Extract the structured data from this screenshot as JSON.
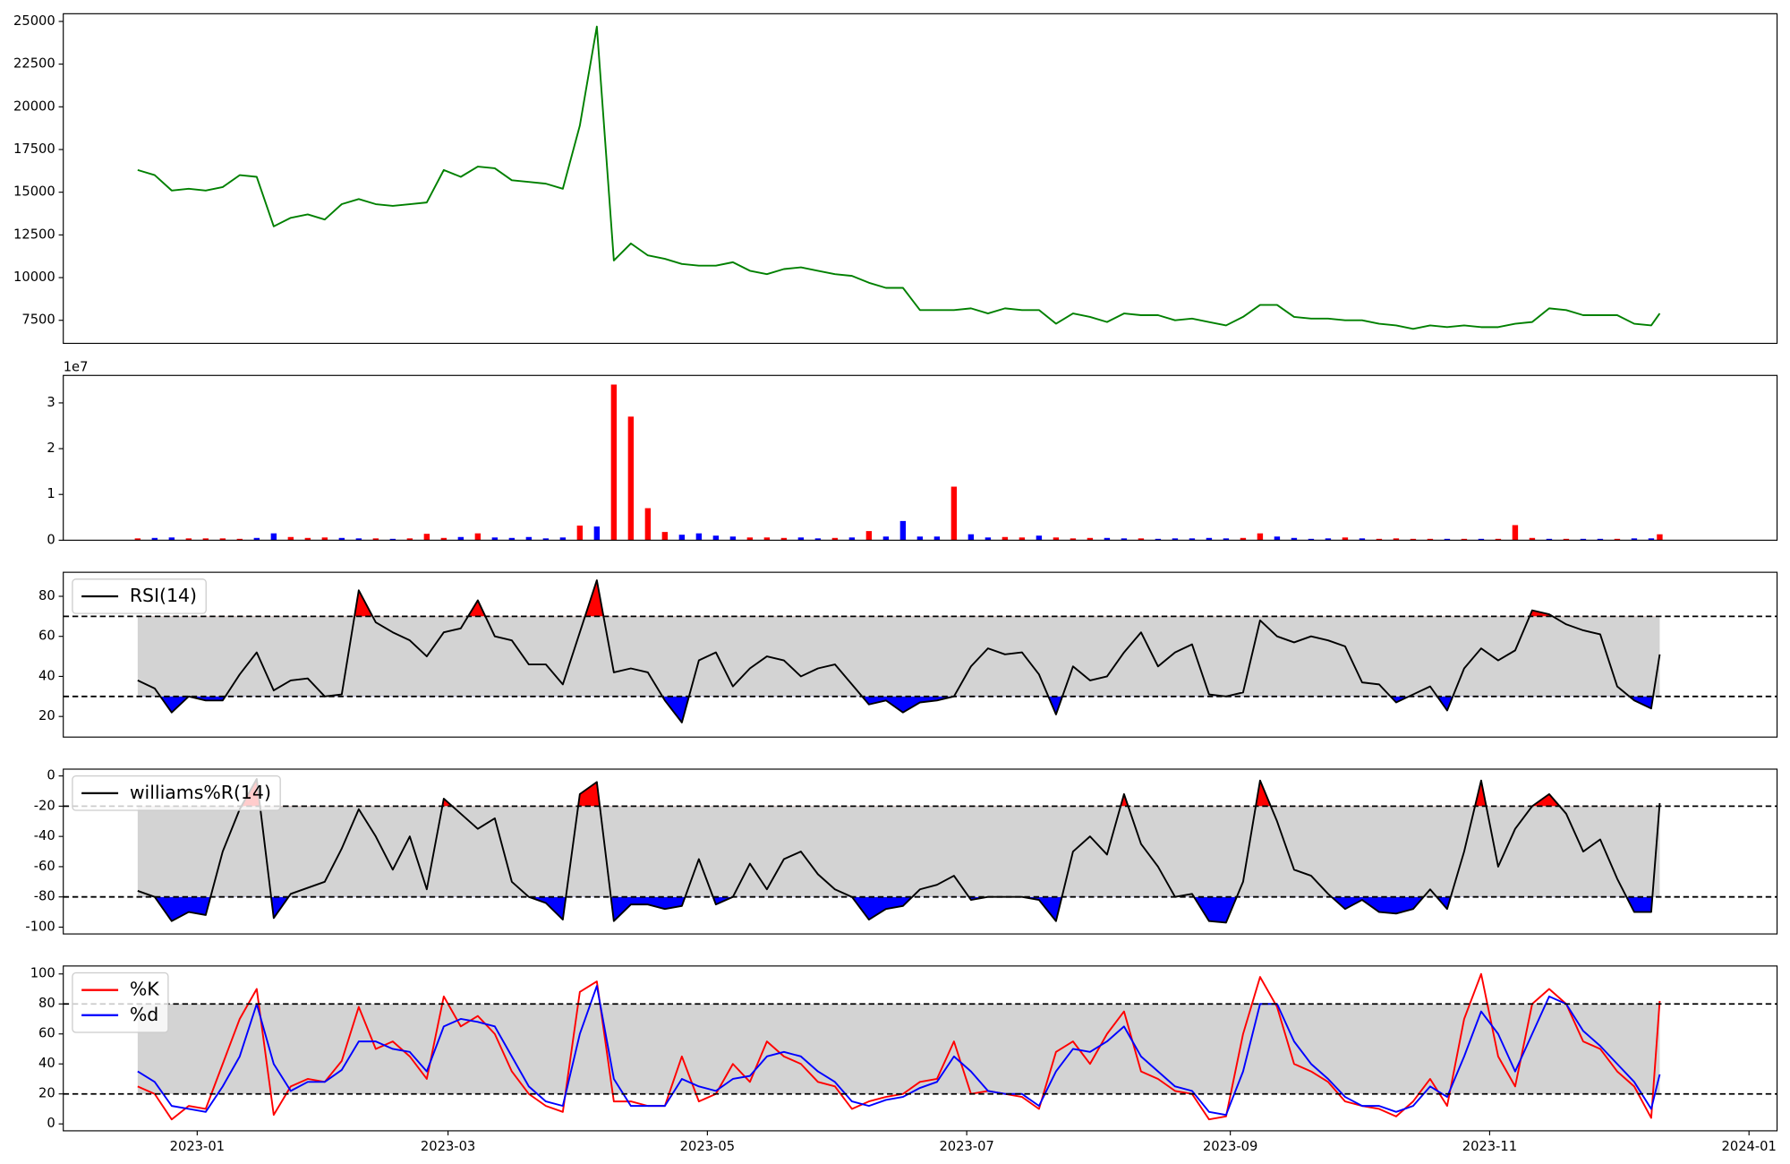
{
  "chart_data": [
    {
      "type": "line",
      "color": "green",
      "x": [
        -14,
        -10,
        -6,
        -2,
        2,
        6,
        10,
        14,
        18,
        22,
        26,
        30,
        34,
        38,
        42,
        46,
        50,
        54,
        58,
        62,
        66,
        70,
        74,
        78,
        82,
        86,
        90,
        94,
        98,
        102,
        106,
        110,
        114,
        118,
        122,
        126,
        130,
        134,
        138,
        142,
        146,
        150,
        154,
        158,
        162,
        166,
        170,
        174,
        178,
        182,
        186,
        190,
        194,
        198,
        202,
        206,
        210,
        214,
        218,
        222,
        226,
        230,
        234,
        238,
        242,
        246,
        250,
        254,
        258,
        262,
        266,
        270,
        274,
        278,
        282,
        286,
        290,
        294,
        298,
        302,
        306,
        310,
        314,
        318,
        322,
        326,
        330,
        334,
        338,
        342,
        344
      ],
      "xlim": [
        -31.5,
        371.6
      ],
      "values": [
        16300,
        16000,
        15100,
        15200,
        15100,
        15300,
        16000,
        15900,
        13000,
        13500,
        13700,
        13400,
        14300,
        14600,
        14300,
        14200,
        14300,
        14400,
        16300,
        15900,
        16500,
        16400,
        15700,
        15600,
        15500,
        15200,
        18900,
        24700,
        11000,
        12000,
        11300,
        11100,
        10800,
        10700,
        10700,
        10900,
        10400,
        10200,
        10500,
        10600,
        10400,
        10200,
        10100,
        9700,
        9400,
        9400,
        8100,
        8100,
        8100,
        8200,
        7900,
        8200,
        8100,
        8100,
        7300,
        7900,
        7700,
        7400,
        7900,
        7800,
        7800,
        7500,
        7600,
        7400,
        7200,
        7700,
        8400,
        8400,
        7700,
        7600,
        7600,
        7500,
        7500,
        7300,
        7200,
        7000,
        7200,
        7100,
        7200,
        7100,
        7100,
        7300,
        7400,
        8200,
        8100,
        7800,
        7800,
        7800,
        7300,
        7200,
        7900
      ],
      "ylim": [
        6150,
        25450
      ],
      "yticks": [
        7500,
        10000,
        12500,
        15000,
        17500,
        20000,
        22500,
        25000
      ]
    },
    {
      "type": "bar",
      "values": [
        400000,
        500000,
        600000,
        400000,
        400000,
        400000,
        300000,
        500000,
        1500000,
        700000,
        500000,
        600000,
        500000,
        400000,
        400000,
        300000,
        400000,
        1400000,
        500000,
        700000,
        1500000,
        600000,
        500000,
        700000,
        400000,
        600000,
        3200000,
        3000000,
        34000000,
        27000000,
        7000000,
        1800000,
        1200000,
        1500000,
        1000000,
        800000,
        600000,
        600000,
        500000,
        600000,
        400000,
        500000,
        600000,
        2000000,
        800000,
        4200000,
        800000,
        800000,
        11700000,
        1300000,
        600000,
        700000,
        600000,
        1000000,
        600000,
        400000,
        500000,
        500000,
        400000,
        400000,
        300000,
        400000,
        400000,
        500000,
        400000,
        500000,
        1500000,
        800000,
        500000,
        300000,
        400000,
        600000,
        400000,
        300000,
        400000,
        300000,
        300000,
        300000,
        300000,
        300000,
        300000,
        3300000,
        500000,
        300000,
        300000,
        300000,
        300000,
        300000,
        400000,
        400000,
        1300000
      ],
      "bar_colors": [
        "red",
        "blue",
        "blue",
        "red",
        "red",
        "red",
        "red",
        "blue",
        "blue",
        "red",
        "red",
        "red",
        "blue",
        "blue",
        "red",
        "blue",
        "red",
        "red",
        "red",
        "blue",
        "red",
        "blue",
        "blue",
        "blue",
        "blue",
        "blue",
        "red",
        "blue",
        "red",
        "red",
        "red",
        "red",
        "blue",
        "blue",
        "blue",
        "blue",
        "red",
        "red",
        "red",
        "blue",
        "blue",
        "red",
        "blue",
        "red",
        "blue",
        "blue",
        "blue",
        "blue",
        "red",
        "blue",
        "blue",
        "red",
        "red",
        "blue",
        "red",
        "red",
        "red",
        "blue",
        "blue",
        "red",
        "blue",
        "blue",
        "blue",
        "blue",
        "blue",
        "red",
        "red",
        "blue",
        "blue",
        "blue",
        "blue",
        "red",
        "blue",
        "red",
        "red",
        "red",
        "red",
        "blue",
        "red",
        "blue",
        "red",
        "red",
        "red",
        "blue",
        "red",
        "blue",
        "blue",
        "red",
        "blue",
        "blue",
        "red"
      ],
      "ylim": [
        0,
        36000000
      ],
      "yticks": [
        0,
        {
          "value": 10000000,
          "label": "1"
        },
        {
          "value": 20000000,
          "label": "2"
        },
        {
          "value": 30000000,
          "label": "3"
        }
      ],
      "offset_label": "1e7"
    },
    {
      "type": "line",
      "legend": "upper left",
      "series": [
        {
          "name": "RSI(14)",
          "color": "black",
          "values": [
            38,
            34,
            22,
            30,
            28,
            28,
            41,
            52,
            33,
            38,
            39,
            30,
            31,
            83,
            67,
            62,
            58,
            50,
            62,
            64,
            78,
            60,
            58,
            46,
            46,
            36,
            62,
            88,
            42,
            44,
            42,
            28,
            17,
            48,
            52,
            35,
            44,
            50,
            48,
            40,
            44,
            46,
            36,
            26,
            28,
            22,
            27,
            28,
            30,
            45,
            54,
            51,
            52,
            41,
            21,
            45,
            38,
            40,
            52,
            62,
            45,
            52,
            56,
            31,
            30,
            32,
            68,
            60,
            57,
            60,
            58,
            55,
            37,
            36,
            27,
            31,
            35,
            23,
            44,
            54,
            48,
            53,
            73,
            71,
            66,
            63,
            61,
            35,
            28,
            24,
            51
          ]
        }
      ],
      "ylim": [
        9.7,
        92
      ],
      "yticks": [
        20,
        40,
        60,
        80
      ],
      "band": [
        30,
        70
      ],
      "band_color": "lightgray",
      "fill_above": "red",
      "fill_below": "blue"
    },
    {
      "type": "line",
      "legend": "upper left",
      "series": [
        {
          "name": "williams%R(14)",
          "color": "black",
          "values": [
            -76,
            -80,
            -96,
            -90,
            -92,
            -50,
            -22,
            -2,
            -94,
            -78,
            -74,
            -70,
            -48,
            -22,
            -40,
            -62,
            -40,
            -75,
            -15,
            -25,
            -35,
            -28,
            -70,
            -80,
            -84,
            -95,
            -12,
            -4,
            -96,
            -85,
            -85,
            -88,
            -86,
            -55,
            -85,
            -80,
            -58,
            -75,
            -55,
            -50,
            -65,
            -75,
            -80,
            -95,
            -88,
            -86,
            -75,
            -72,
            -66,
            -82,
            -80,
            -80,
            -80,
            -82,
            -96,
            -50,
            -40,
            -52,
            -12,
            -45,
            -60,
            -80,
            -78,
            -96,
            -97,
            -70,
            -3,
            -30,
            -62,
            -66,
            -78,
            -88,
            -82,
            -90,
            -91,
            -88,
            -75,
            -88,
            -50,
            -3,
            -60,
            -35,
            -20,
            -12,
            -25,
            -50,
            -42,
            -68,
            -90,
            -90,
            -18
          ]
        }
      ],
      "ylim": [
        -104.5,
        4.5
      ],
      "yticks": [
        -100,
        -80,
        -60,
        -40,
        -20,
        0
      ],
      "band": [
        -80,
        -20
      ],
      "band_color": "lightgray",
      "fill_above": "red",
      "fill_below": "blue"
    },
    {
      "type": "line",
      "legend": "upper left",
      "series": [
        {
          "name": "%K",
          "color": "red",
          "values": [
            25,
            20,
            3,
            12,
            10,
            40,
            70,
            90,
            6,
            25,
            30,
            28,
            42,
            78,
            50,
            55,
            45,
            30,
            85,
            65,
            72,
            60,
            35,
            20,
            12,
            8,
            88,
            95,
            15,
            15,
            12,
            12,
            45,
            15,
            20,
            40,
            28,
            55,
            45,
            40,
            28,
            25,
            10,
            15,
            18,
            20,
            28,
            30,
            55,
            20,
            22,
            20,
            18,
            10,
            48,
            55,
            40,
            60,
            75,
            35,
            30,
            22,
            20,
            3,
            5,
            60,
            98,
            78,
            40,
            35,
            28,
            15,
            12,
            10,
            5,
            15,
            30,
            12,
            70,
            100,
            45,
            25,
            80,
            90,
            80,
            55,
            50,
            35,
            25,
            4,
            82
          ]
        },
        {
          "name": "%d",
          "color": "blue",
          "values": [
            35,
            28,
            12,
            10,
            8,
            25,
            45,
            80,
            40,
            22,
            28,
            28,
            36,
            55,
            55,
            50,
            48,
            35,
            65,
            70,
            68,
            65,
            45,
            25,
            15,
            12,
            60,
            92,
            30,
            12,
            12,
            12,
            30,
            25,
            22,
            30,
            32,
            45,
            48,
            45,
            35,
            28,
            15,
            12,
            16,
            18,
            24,
            28,
            45,
            35,
            22,
            20,
            20,
            12,
            35,
            50,
            48,
            55,
            65,
            45,
            35,
            25,
            22,
            8,
            6,
            35,
            80,
            80,
            55,
            40,
            30,
            18,
            12,
            12,
            8,
            12,
            25,
            18,
            45,
            75,
            60,
            35,
            60,
            85,
            80,
            62,
            52,
            40,
            28,
            10,
            33
          ]
        }
      ],
      "ylim": [
        -4.6,
        105.3
      ],
      "yticks": [
        0,
        20,
        40,
        60,
        80,
        100
      ],
      "band": [
        20,
        80
      ],
      "band_color": "lightgray",
      "xticks": [
        {
          "value": 0,
          "label": "2023-01"
        },
        {
          "value": 59,
          "label": "2023-03"
        },
        {
          "value": 120,
          "label": "2023-05"
        },
        {
          "value": 181,
          "label": "2023-07"
        },
        {
          "value": 243,
          "label": "2023-09"
        },
        {
          "value": 304,
          "label": "2023-11"
        },
        {
          "value": 365,
          "label": "2024-01"
        }
      ]
    }
  ]
}
